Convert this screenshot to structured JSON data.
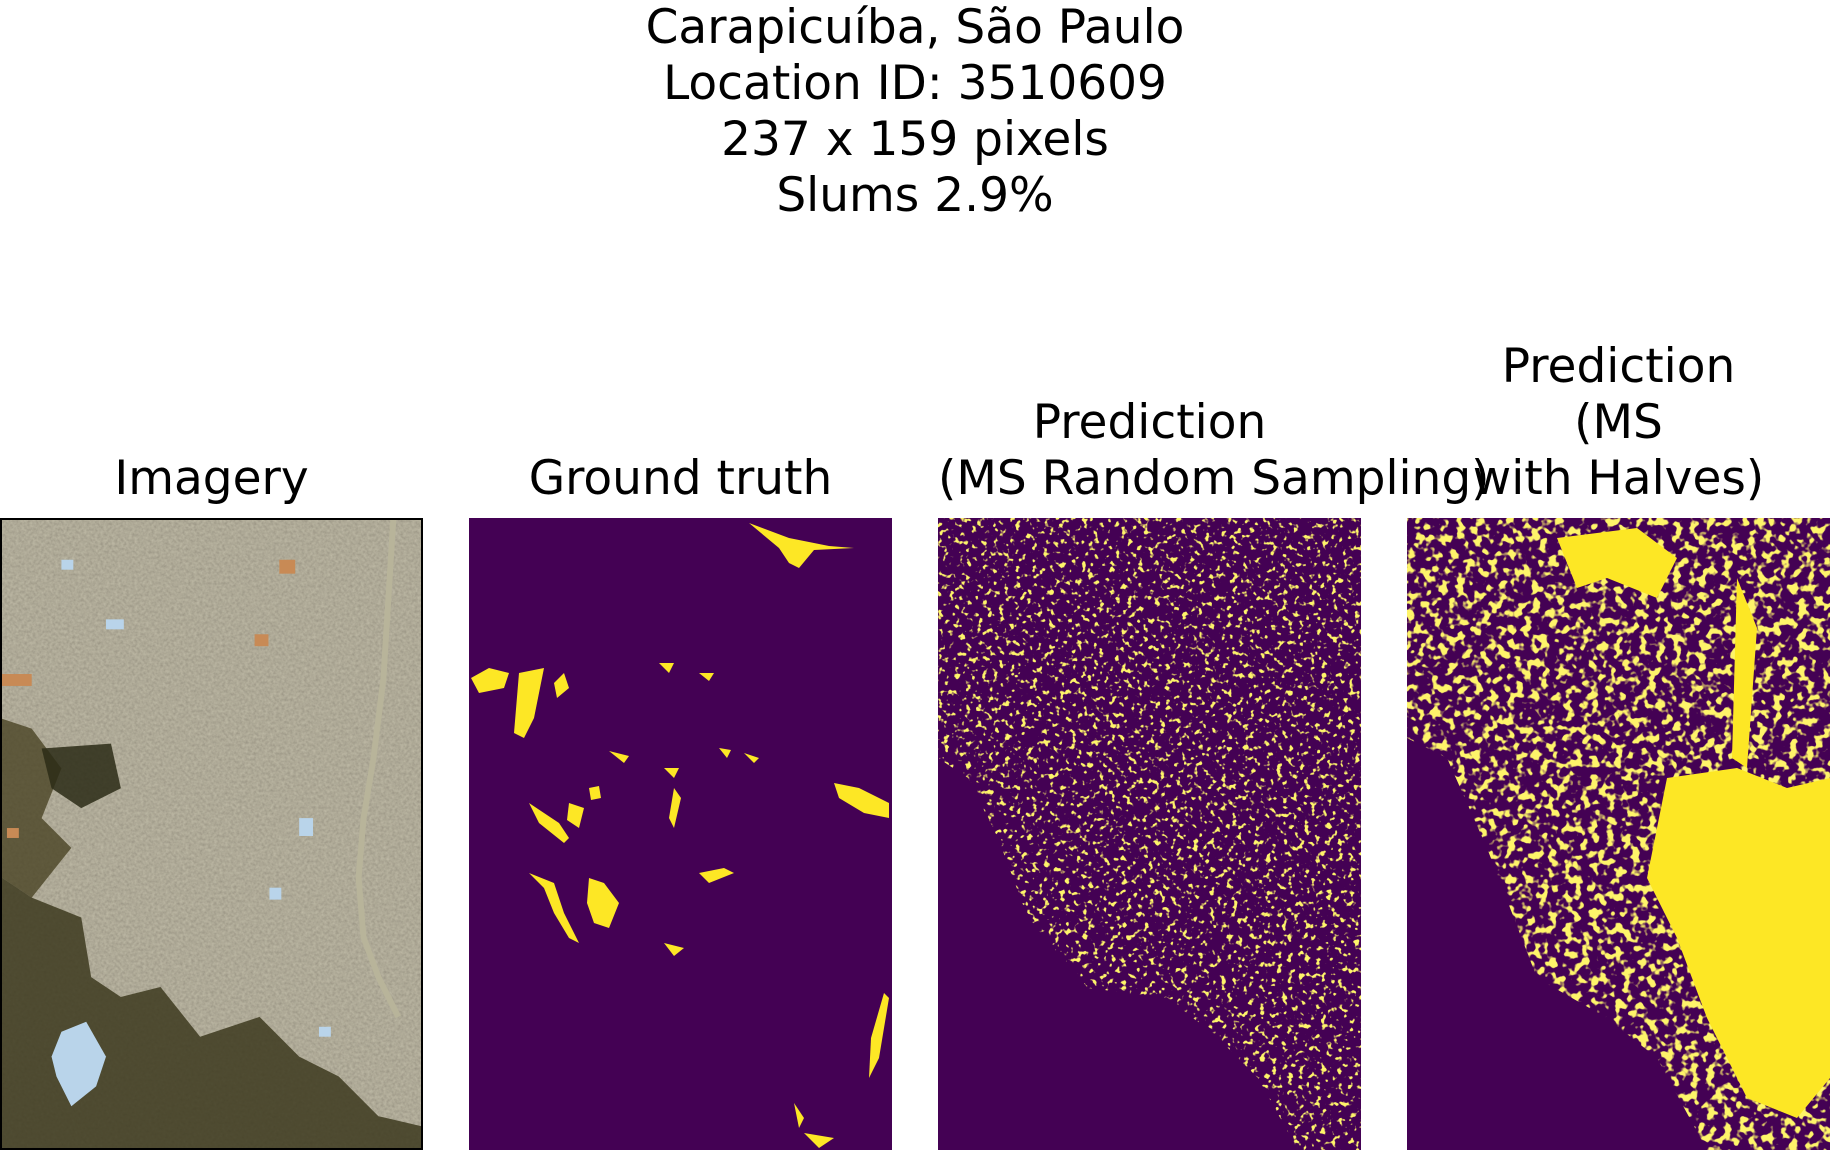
{
  "figure": {
    "suptitle_lines": [
      "Carapicuíba, São Paulo",
      "Location ID: 3510609",
      "237 x 159 pixels",
      "Slums 2.9%"
    ]
  },
  "panels": [
    {
      "title_lines": [
        "Imagery"
      ],
      "kind": "satellite-image"
    },
    {
      "title_lines": [
        "Ground truth"
      ],
      "kind": "binary-mask"
    },
    {
      "title_lines": [
        "Prediction",
        "(MS Random Sampling)"
      ],
      "kind": "binary-mask"
    },
    {
      "title_lines": [
        "Prediction",
        "(MS",
        "with Halves)"
      ],
      "kind": "binary-mask"
    }
  ],
  "colors": {
    "mask_background": "#440154",
    "mask_foreground": "#fde725",
    "imagery_base": "#8a8370",
    "imagery_vegetation": "#3d3a1e",
    "imagery_water": "#b9d4ea"
  }
}
